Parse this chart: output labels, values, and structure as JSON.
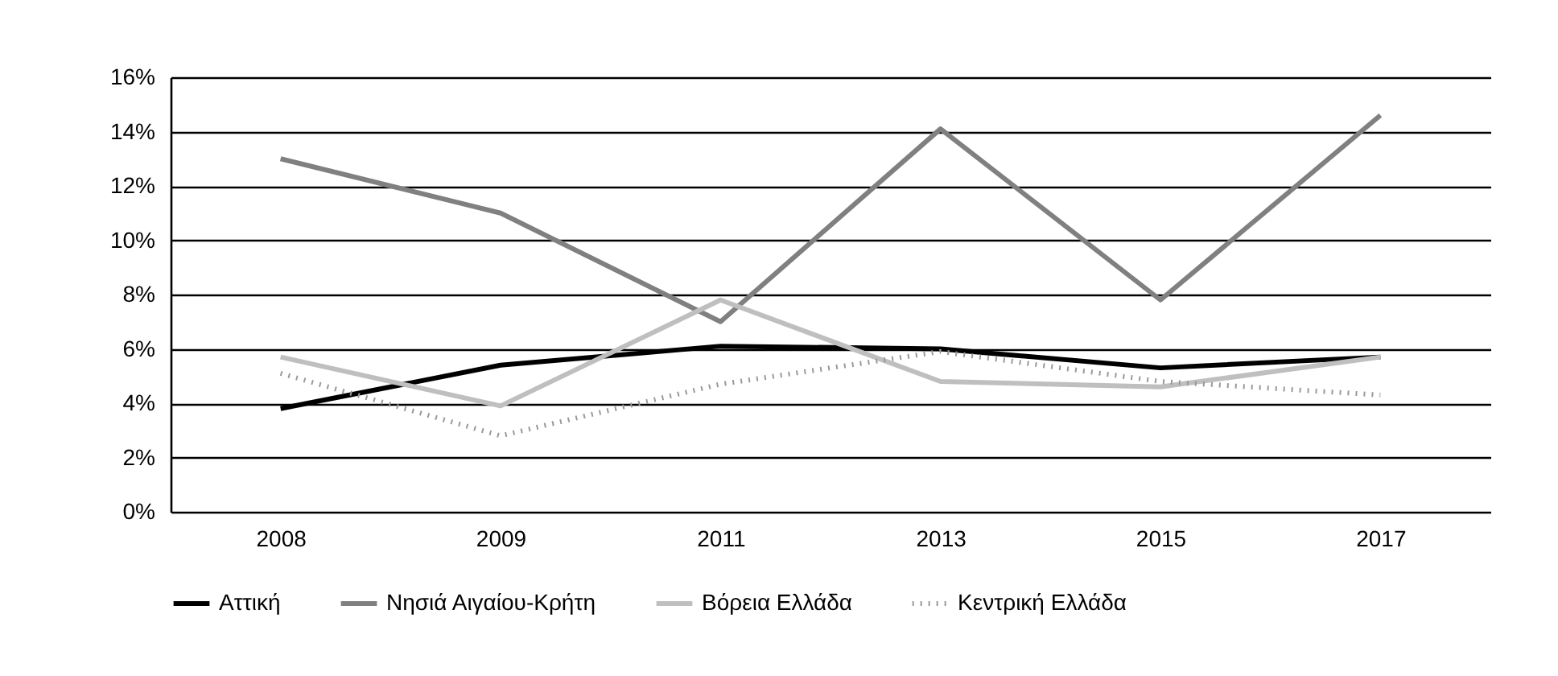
{
  "chart_data": {
    "type": "line",
    "categories": [
      "2008",
      "2009",
      "2011",
      "2013",
      "2015",
      "2017"
    ],
    "series": [
      {
        "name": "Αττική",
        "color": "#000000",
        "line_style": "solid",
        "values": [
          3.8,
          5.4,
          6.1,
          6.0,
          5.3,
          5.7
        ]
      },
      {
        "name": "Νησιά Αιγαίου-Κρήτη",
        "color": "#808080",
        "line_style": "solid",
        "values": [
          13.0,
          11.0,
          7.0,
          14.1,
          7.8,
          14.6
        ]
      },
      {
        "name": "Βόρεια Ελλάδα",
        "color": "#bfbfbf",
        "line_style": "solid",
        "values": [
          5.7,
          3.9,
          7.8,
          4.8,
          4.6,
          5.7
        ]
      },
      {
        "name": "Κεντρική Ελλάδα",
        "color": "#999999",
        "line_style": "dotted",
        "values": [
          5.1,
          2.8,
          4.7,
          5.9,
          4.8,
          4.3
        ]
      }
    ],
    "ylim": [
      0,
      16
    ],
    "yticks": [
      {
        "value": 0,
        "label": "0%"
      },
      {
        "value": 2,
        "label": "2%"
      },
      {
        "value": 4,
        "label": "4%"
      },
      {
        "value": 6,
        "label": "6%"
      },
      {
        "value": 8,
        "label": "8%"
      },
      {
        "value": 10,
        "label": "10%"
      },
      {
        "value": 12,
        "label": "12%"
      },
      {
        "value": 14,
        "label": "14%"
      },
      {
        "value": 16,
        "label": "16%"
      }
    ],
    "grid": "y",
    "legend": "bottom",
    "marker": "none"
  }
}
